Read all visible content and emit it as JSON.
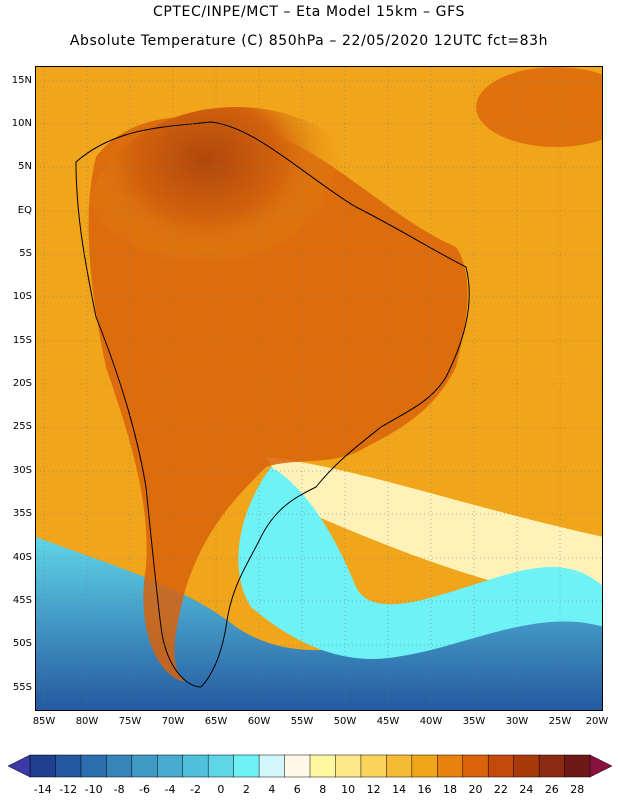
{
  "title": {
    "line1": "CPTEC/INPE/MCT –  Eta Model 15km – GFS",
    "line2": "Absolute Temperature (C) 850hPa – 22/05/2020 12UTC fct=83h"
  },
  "latitude_labels": [
    "15N",
    "10N",
    "5N",
    "EQ",
    "5S",
    "10S",
    "15S",
    "20S",
    "25S",
    "30S",
    "35S",
    "40S",
    "45S",
    "50S",
    "55S"
  ],
  "longitude_labels": [
    "85W",
    "80W",
    "75W",
    "70W",
    "65W",
    "60W",
    "55W",
    "50W",
    "45W",
    "40W",
    "35W",
    "30W",
    "25W",
    "20W"
  ],
  "colorbar": {
    "labels": [
      "-14",
      "-12",
      "-10",
      "-8",
      "-6",
      "-4",
      "-2",
      "0",
      "2",
      "4",
      "6",
      "8",
      "10",
      "12",
      "14",
      "16",
      "18",
      "20",
      "22",
      "24",
      "26",
      "28"
    ],
    "colors": [
      "#1f3f8f",
      "#2457a0",
      "#2c6fae",
      "#3584ba",
      "#3f9ac4",
      "#47acd0",
      "#4fc1dc",
      "#5fd6e8",
      "#6ff2f5",
      "#d2f6fb",
      "#fff8e6",
      "#fff7a0",
      "#fde98a",
      "#fbd35a",
      "#f6bb35",
      "#f1a51a",
      "#e8830f",
      "#d9620b",
      "#c24a0a",
      "#a83a09",
      "#8a2a10",
      "#6e1818"
    ],
    "under_color": "#3b3aa8",
    "over_color": "#8a1040"
  }
}
